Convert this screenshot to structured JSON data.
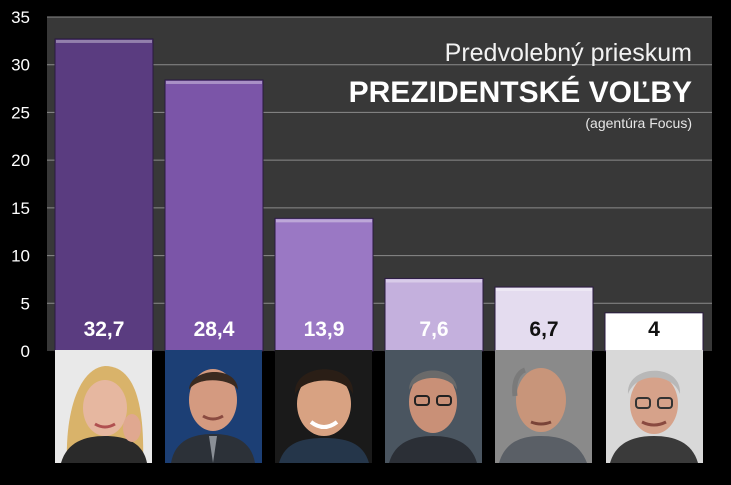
{
  "chart_data": {
    "type": "bar",
    "title": "Predvolebný prieskum",
    "subtitle": "PREZIDENTSKÉ VOĽBY",
    "source": "(agentúra Focus)",
    "categories": [
      "",
      "",
      "",
      "",
      "",
      ""
    ],
    "values": [
      32.7,
      28.4,
      13.9,
      7.6,
      6.7,
      4
    ],
    "value_labels": [
      "32,7",
      "28,4",
      "13,9",
      "7,6",
      "6,7",
      "4"
    ],
    "ylim": [
      0,
      35
    ],
    "yticks": [
      0,
      5,
      10,
      15,
      20,
      25,
      30,
      35
    ],
    "grid": true,
    "xlabel": "",
    "ylabel": "",
    "colors": {
      "background": "#000000",
      "plot_area": "#383838",
      "gridline": "#8a8a8a",
      "bar_gradient": [
        "#5a3c80",
        "#7b55a8",
        "#9a78c4",
        "#c4b0dd",
        "#e4dcef",
        "#ffffff"
      ],
      "label_light": "#ffffff",
      "label_dark": "#111111"
    }
  },
  "photos": [
    {
      "icon": "woman-portrait-icon"
    },
    {
      "icon": "man-portrait-icon"
    },
    {
      "icon": "man-portrait-icon"
    },
    {
      "icon": "man-glasses-portrait-icon"
    },
    {
      "icon": "man-bald-portrait-icon"
    },
    {
      "icon": "man-glasses-portrait-icon"
    }
  ]
}
